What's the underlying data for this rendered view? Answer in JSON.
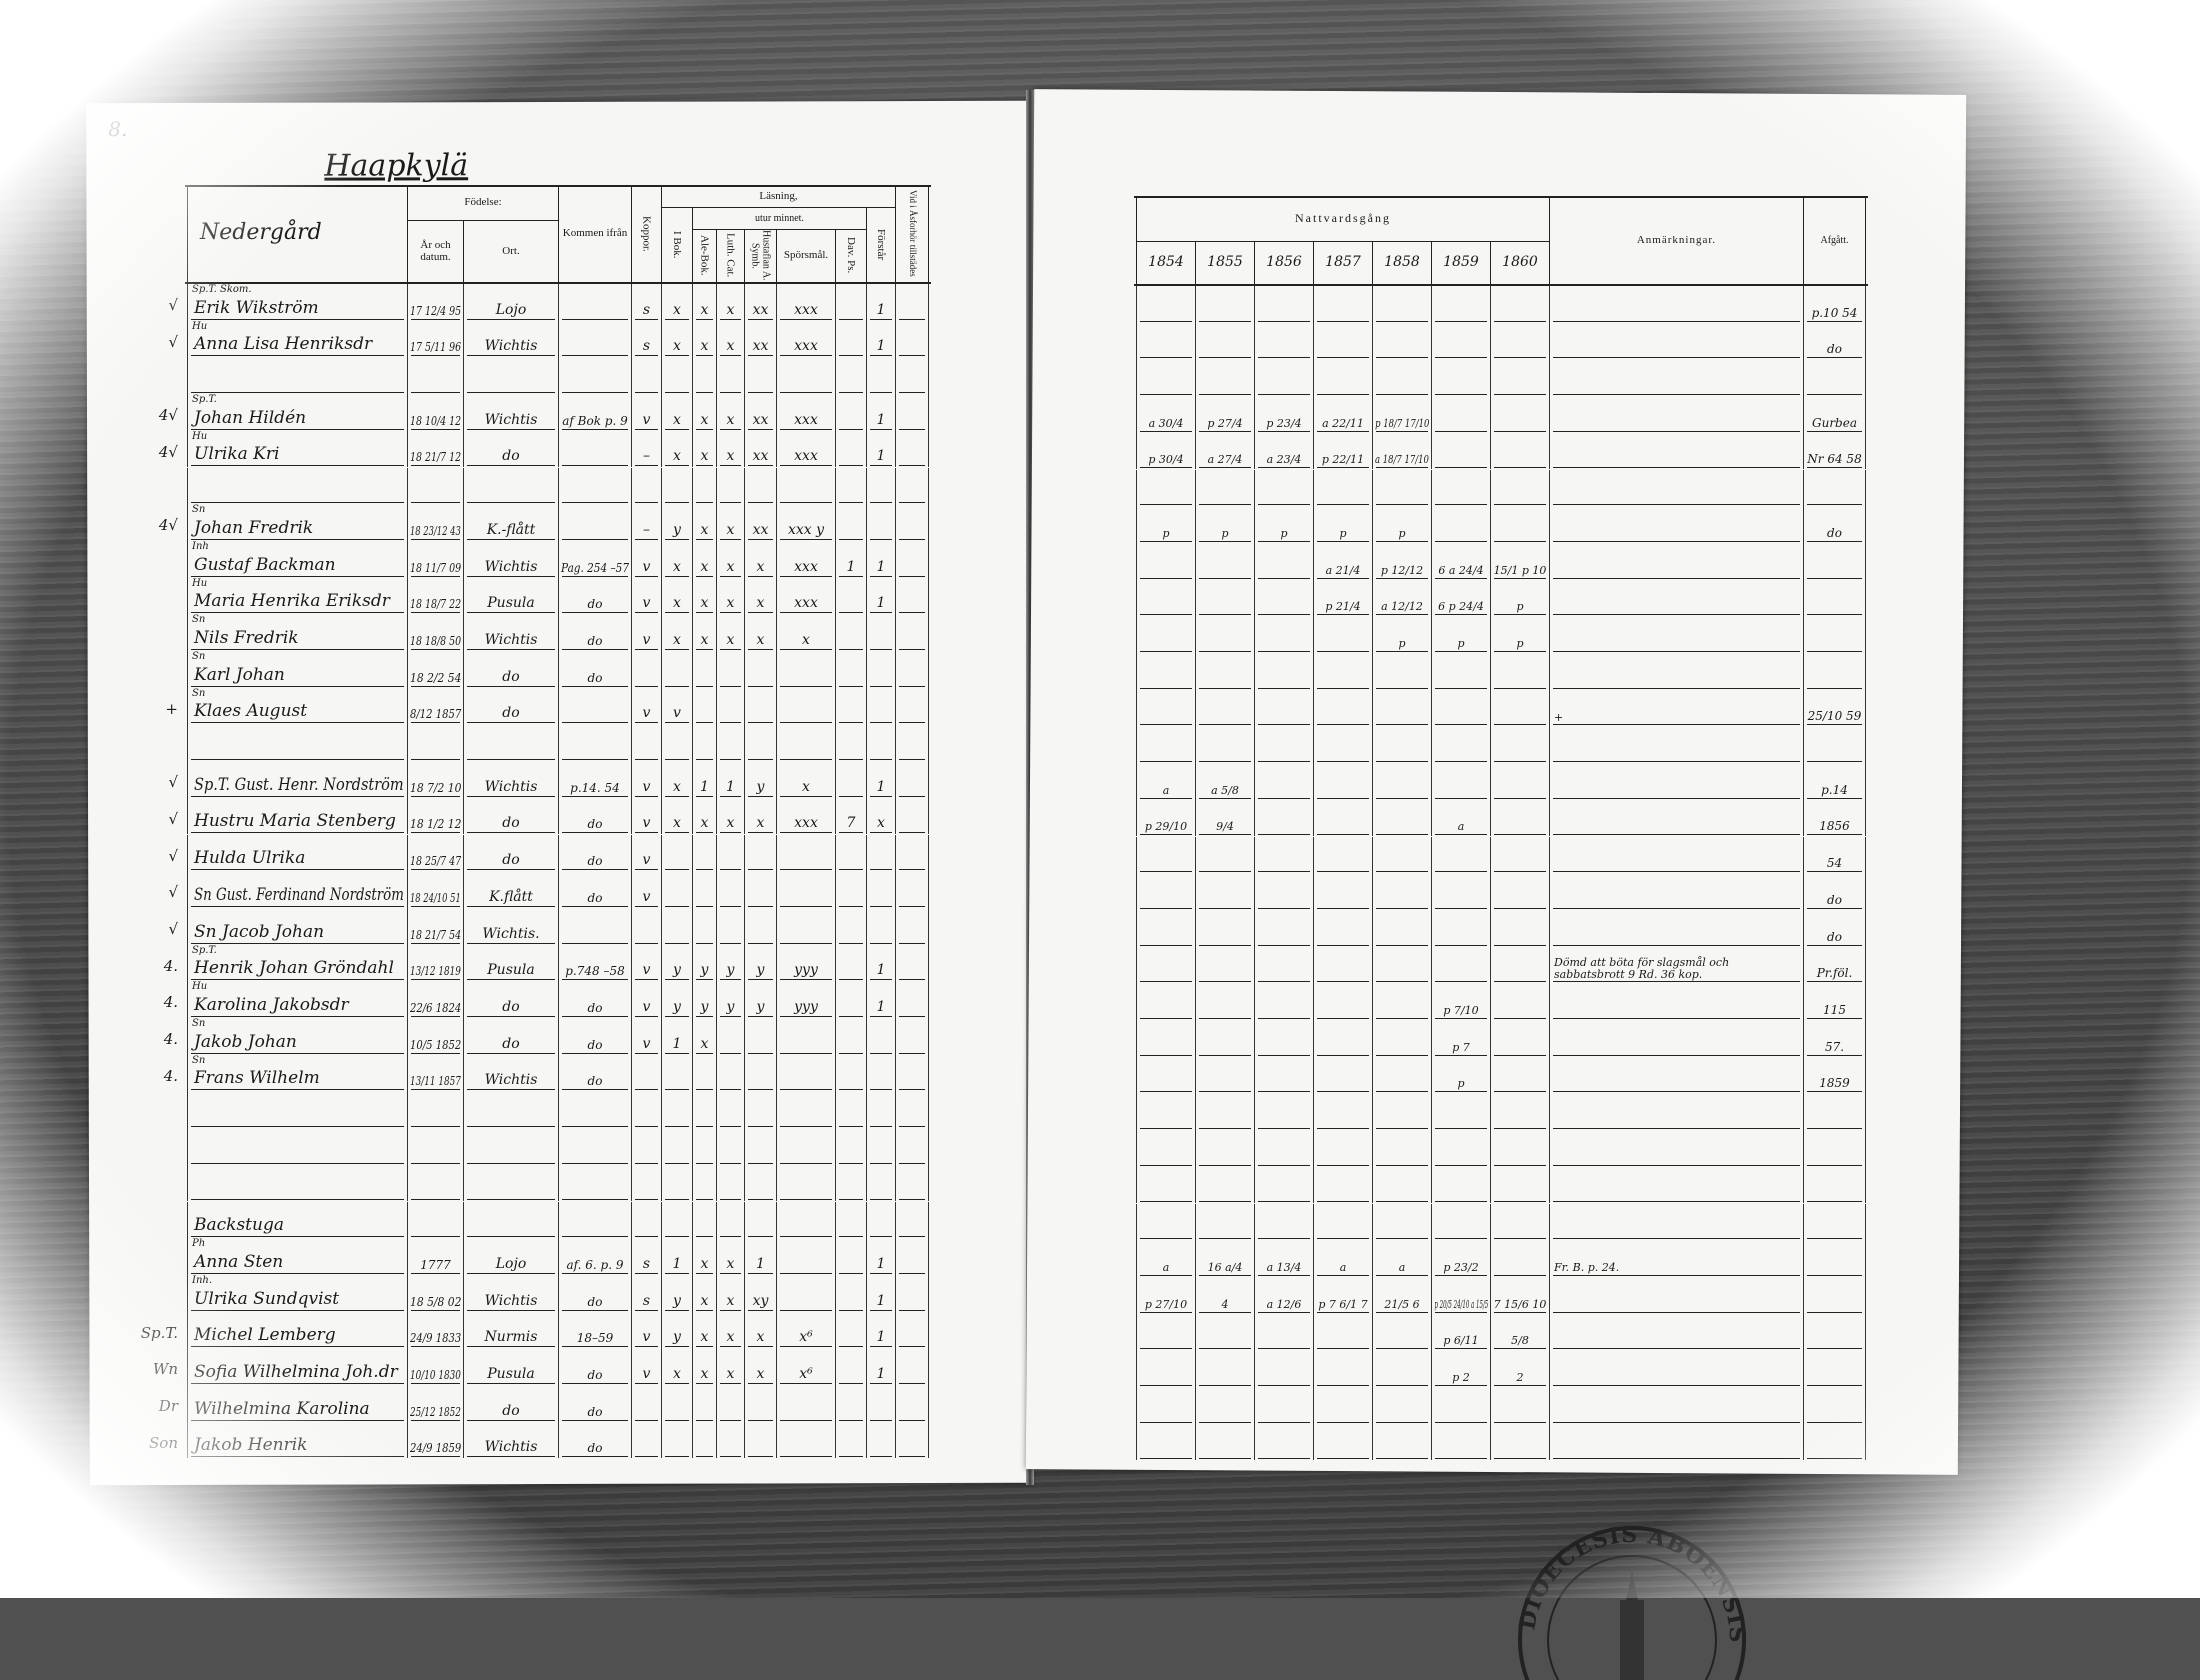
{
  "left_page": {
    "page_number": "8.",
    "place_title": "Haapkylä",
    "farm_name": "Nedergård",
    "headers": {
      "birth": "Födelse:",
      "birth_date": "År och datum.",
      "birth_place": "Ort.",
      "came_from": "Kommen ifrån",
      "koppor": "Koppor.",
      "reading": "Läsning,",
      "by_heart": "utur minnet.",
      "i_bok": "I Bok.",
      "ale_bok": "Ale-Bok.",
      "luth_cat": "Luth. Cat.",
      "hustaflan": "Hustaflan A. Symb.",
      "sporsmal": "Spörsmål.",
      "dav_ps": "Dav. Ps.",
      "forstar": "Förstår",
      "vid_forhor": "Vid i Åsforhör tillstädes"
    },
    "rows": [
      {
        "margin": "√",
        "title": "Sp.T. Skom.",
        "name": "Erik Wikström",
        "date": "17 12/4 95",
        "place": "Lojo",
        "koppor": "s",
        "ibok": "x",
        "ale": "x",
        "luth": "x",
        "hust": "xx",
        "spors": "xxx",
        "forstar": "1"
      },
      {
        "margin": "√",
        "title": "Hu",
        "name": "Anna Lisa Henriksdr",
        "date": "17 5/11 96",
        "place": "Wichtis",
        "koppor": "s",
        "ibok": "x",
        "ale": "x",
        "luth": "x",
        "hust": "xx",
        "spors": "xxx",
        "forstar": "1"
      },
      {},
      {
        "margin": "4√",
        "title": "Sp.T.",
        "name": "Johan Hildén",
        "date": "18 10/4 12",
        "place": "Wichtis",
        "from": "af Bok p. 9",
        "koppor": "v",
        "ibok": "x",
        "ale": "x",
        "luth": "x",
        "hust": "xx",
        "spors": "xxx",
        "forstar": "1"
      },
      {
        "margin": "4√",
        "title": "Hu",
        "name": "Ulrika Kri",
        "date": "18 21/7 12",
        "place": "do",
        "koppor": "–",
        "ibok": "x",
        "ale": "x",
        "luth": "x",
        "hust": "xx",
        "spors": "xxx",
        "forstar": "1"
      },
      {},
      {
        "margin": "4√",
        "title": "Sn",
        "name": "Johan Fredrik",
        "date": "18 23/12 43",
        "place": "K.-flått",
        "koppor": "–",
        "ibok": "y",
        "ale": "x",
        "luth": "x",
        "hust": "xx",
        "spors": "xxx y"
      },
      {
        "title": "Inh",
        "name": "Gustaf Backman",
        "date": "18 11/7 09",
        "place": "Wichtis",
        "from": "Pag. 254 –57",
        "koppor": "v",
        "ibok": "x",
        "ale": "x",
        "luth": "x",
        "hust": "x",
        "spors": "xxx",
        "dav": "1",
        "forstar": "1"
      },
      {
        "title": "Hu",
        "name": "Maria Henrika Eriksdr",
        "date": "18 18/7 22",
        "place": "Pusula",
        "from": "do",
        "koppor": "v",
        "ibok": "x",
        "ale": "x",
        "luth": "x",
        "hust": "x",
        "spors": "xxx",
        "forstar": "1"
      },
      {
        "title": "Sn",
        "name": "Nils Fredrik",
        "date": "18 18/8 50",
        "place": "Wichtis",
        "from": "do",
        "koppor": "v",
        "ibok": "x",
        "ale": "x",
        "luth": "x",
        "hust": "x",
        "spors": "x"
      },
      {
        "title": "Sn",
        "name": "Karl Johan",
        "date": "18 2/2 54",
        "place": "do",
        "from": "do"
      },
      {
        "margin": "+",
        "title": "Sn",
        "name": "Klaes August",
        "date": "8/12 1857",
        "place": "do",
        "koppor": "v",
        "ibok": "v"
      },
      {},
      {
        "margin": "√",
        "name": "Sp.T. Gust. Henr. Nordström",
        "date": "18 7/2 10",
        "place": "Wichtis",
        "from": "p.14. 54",
        "koppor": "v",
        "ibok": "x",
        "ale": "1",
        "luth": "1",
        "hust": "y",
        "spors": "x",
        "forstar": "1"
      },
      {
        "margin": "√",
        "name": "Hustru Maria Stenberg",
        "date": "18 1/2 12",
        "place": "do",
        "from": "do",
        "koppor": "v",
        "ibok": "x",
        "ale": "x",
        "luth": "x",
        "hust": "x",
        "spors": "xxx",
        "dav": "7",
        "forstar": "x"
      },
      {
        "margin": "√",
        "name": "Hulda Ulrika",
        "date": "18 25/7 47",
        "place": "do",
        "from": "do",
        "koppor": "v"
      },
      {
        "margin": "√",
        "name": "Sn Gust. Ferdinand Nordström",
        "date": "18 24/10 51",
        "place": "K.flått",
        "from": "do",
        "koppor": "v"
      },
      {
        "margin": "√",
        "name": "Sn Jacob Johan",
        "date": "18 21/7 54",
        "place": "Wichtis."
      },
      {
        "margin": "4.",
        "title": "Sp.T.",
        "name": "Henrik Johan Gröndahl",
        "date": "13/12 1819",
        "place": "Pusula",
        "from": "p.748 –58",
        "koppor": "v",
        "ibok": "y",
        "ale": "y",
        "luth": "y",
        "hust": "y",
        "spors": "yyy",
        "forstar": "1"
      },
      {
        "margin": "4.",
        "title": "Hu",
        "name": "Karolina Jakobsdr",
        "date": "22/6 1824",
        "place": "do",
        "from": "do",
        "koppor": "v",
        "ibok": "y",
        "ale": "y",
        "luth": "y",
        "hust": "y",
        "spors": "yyy",
        "forstar": "1"
      },
      {
        "margin": "4.",
        "title": "Sn",
        "name": "Jakob Johan",
        "date": "10/5 1852",
        "place": "do",
        "from": "do",
        "koppor": "v",
        "ibok": "1",
        "ale": "x"
      },
      {
        "margin": "4.",
        "title": "Sn",
        "name": "Frans Wilhelm",
        "date": "13/11 1857",
        "place": "Wichtis",
        "from": "do"
      },
      {},
      {},
      {},
      {
        "section": "Backstuga"
      },
      {
        "title": "Ph",
        "name": "Anna Sten",
        "date": "1777",
        "place": "Lojo",
        "from": "af. 6. p. 9",
        "koppor": "s",
        "ibok": "1",
        "ale": "x",
        "luth": "x",
        "hust": "1",
        "forstar": "1"
      },
      {
        "title": "Inh.",
        "name": "Ulrika Sundqvist",
        "date": "18 5/8 02",
        "place": "Wichtis",
        "from": "do",
        "koppor": "s",
        "ibok": "y",
        "ale": "x",
        "luth": "x",
        "hust": "xy",
        "forstar": "1"
      },
      {
        "margin": "Sp.T.",
        "name": "Michel Lemberg",
        "date": "24/9 1833",
        "place": "Nurmis",
        "from": "18–59",
        "koppor": "v",
        "ibok": "y",
        "ale": "x",
        "luth": "x",
        "hust": "x",
        "spors": "x⁶",
        "forstar": "1"
      },
      {
        "margin": "Wn",
        "name": "Sofia Wilhelmina Joh.dr",
        "date": "10/10 1830",
        "place": "Pusula",
        "from": "do",
        "koppor": "v",
        "ibok": "x",
        "ale": "x",
        "luth": "x",
        "hust": "x",
        "spors": "x⁶",
        "forstar": "1"
      },
      {
        "margin": "Dr",
        "name": "Wilhelmina Karolina",
        "date": "25/12 1852",
        "place": "do",
        "from": "do"
      },
      {
        "margin": "Son",
        "name": "Jakob Henrik",
        "date": "24/9 1859",
        "place": "Wichtis",
        "from": "do"
      }
    ]
  },
  "right_page": {
    "headers": {
      "communion": "Nattvardsgång",
      "years": [
        "1854",
        "1855",
        "1856",
        "1857",
        "1858",
        "1859",
        "1860"
      ],
      "remarks": "Anmärkningar.",
      "departed": "Afgått."
    },
    "rows": [
      {
        "departed": "p.10 54"
      },
      {
        "departed": "do"
      },
      {},
      {
        "c": [
          "a 30/4",
          "p 27/4",
          "p 23/4",
          "a 22/11",
          "p 18/7 17/10",
          "",
          ""
        ],
        "departed": "Gurbea"
      },
      {
        "c": [
          "p 30/4",
          "a 27/4",
          "a 23/4",
          "p 22/11",
          "a 18/7 17/10",
          "",
          ""
        ],
        "departed": "Nr 64 58"
      },
      {},
      {
        "c": [
          "p",
          "p",
          "p",
          "p",
          "p",
          "",
          ""
        ],
        "departed": "do"
      },
      {
        "c": [
          "",
          "",
          "",
          "a 21/4",
          "p 12/12",
          "6 a 24/4",
          "15/1 p 10"
        ]
      },
      {
        "c": [
          "",
          "",
          "",
          "p 21/4",
          "a 12/12",
          "6 p 24/4",
          "p"
        ]
      },
      {
        "c": [
          "",
          "",
          "",
          "",
          "p",
          "p",
          "p"
        ]
      },
      {},
      {
        "remark": "+",
        "departed": "25/10 59"
      },
      {},
      {
        "c": [
          "a",
          "a 5/8",
          "",
          "",
          "",
          "",
          ""
        ],
        "departed": "p.14"
      },
      {
        "c": [
          "p 29/10",
          "9/4",
          "",
          "",
          "",
          "a",
          ""
        ],
        "departed": "1856"
      },
      {
        "departed": "54"
      },
      {
        "departed": "do"
      },
      {
        "departed": "do"
      },
      {
        "remark": "Dömd att böta för slagsmål och sabbatsbrott 9 Rd. 36 kop.",
        "departed": "Pr.föl."
      },
      {
        "c": [
          "",
          "",
          "",
          "",
          "",
          "p 7/10",
          ""
        ],
        "departed": "115"
      },
      {
        "c": [
          "",
          "",
          "",
          "",
          "",
          "p 7",
          ""
        ],
        "departed": "57."
      },
      {
        "c": [
          "",
          "",
          "",
          "",
          "",
          "p",
          ""
        ],
        "departed": "1859"
      },
      {},
      {},
      {},
      {},
      {
        "c": [
          "a",
          "16 a/4",
          "a 13/4",
          "a",
          "a",
          "p 23/2",
          ""
        ],
        "remark": "Fr. B. p. 24."
      },
      {
        "c": [
          "p 27/10",
          "4",
          "a 12/6",
          "p 7 6/1 7",
          "21/5 6",
          "p 20/5 24/10 a 15/5",
          "7 15/6 10"
        ]
      },
      {
        "c": [
          "",
          "",
          "",
          "",
          "",
          "p 6/11",
          "5/8"
        ]
      },
      {
        "c": [
          "",
          "",
          "",
          "",
          "",
          "p 2",
          "2"
        ]
      },
      {},
      {}
    ]
  },
  "stamp": {
    "text": "DIOECESIS ABOENSIS"
  }
}
